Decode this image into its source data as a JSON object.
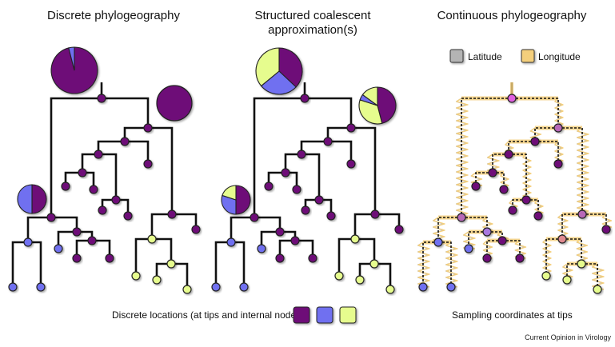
{
  "panels": {
    "discrete": {
      "title": "Discrete phylogeography"
    },
    "structured": {
      "title_line1": "Structured coalescent",
      "title_line2": "approximation(s)"
    },
    "continuous": {
      "title": "Continuous phylogeography"
    }
  },
  "legend": {
    "latitude_label": "Latitude",
    "longitude_label": "Longitude",
    "latitude_color": "#b4b4b4",
    "longitude_color": "#f4cf7c"
  },
  "captions": {
    "discrete_locations": "Discrete locations (at tips and internal nodes):",
    "sampling": "Sampling coordinates at tips"
  },
  "credit": "Current Opinion in Virology",
  "colors": {
    "loc_purple": "#6e0d78",
    "loc_blue": "#7070f0",
    "loc_green": "#e6fc8e",
    "continuous_root": "#e060e0",
    "continuous_mid": "#b868b8",
    "continuous_salmon": "#e08a90",
    "continuous_lavender": "#a878e0"
  }
}
